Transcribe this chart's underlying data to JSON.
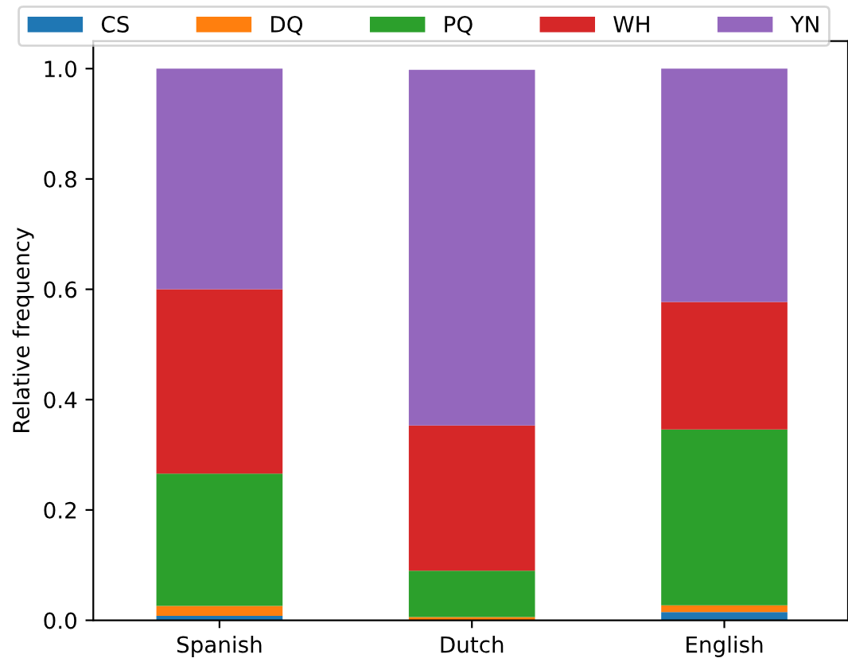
{
  "chart_data": {
    "type": "bar",
    "stacked": true,
    "ylabel": "Relative frequency",
    "categories": [
      "Spanish",
      "Dutch",
      "English"
    ],
    "series": [
      {
        "name": "CS",
        "color": "#1f77b4",
        "values": [
          0.008,
          null,
          0.015
        ]
      },
      {
        "name": "DQ",
        "color": "#ff7f0e",
        "values": [
          0.018,
          0.006,
          0.012
        ]
      },
      {
        "name": "PQ",
        "color": "#2ca02c",
        "values": [
          0.24,
          0.084,
          0.319
        ]
      },
      {
        "name": "WH",
        "color": "#d62728",
        "values": [
          0.334,
          0.263,
          0.231
        ]
      },
      {
        "name": "YN",
        "color": "#9467bd",
        "values": [
          0.4,
          0.645,
          0.423
        ]
      }
    ],
    "ylim": [
      0,
      1.05
    ],
    "yticks": [
      {
        "value": 0,
        "label": "0.0"
      },
      {
        "value": 0.2,
        "label": "0.2"
      },
      {
        "value": 0.4,
        "label": "0.4"
      },
      {
        "value": 0.6,
        "label": "0.6"
      },
      {
        "value": 0.8,
        "label": "0.8"
      },
      {
        "value": 1.0,
        "label": "1.0"
      }
    ],
    "grid": false,
    "legend": "top"
  }
}
